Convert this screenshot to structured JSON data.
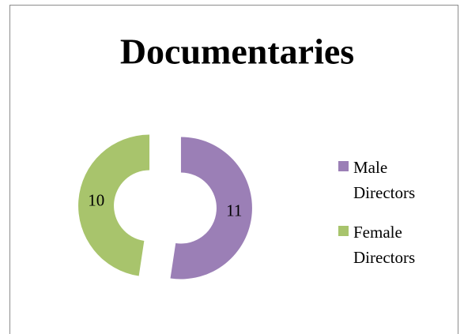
{
  "chart_data": {
    "type": "doughnut",
    "title": "Documentaries",
    "categories": [
      "Male Directors",
      "Female Directors"
    ],
    "values": [
      11,
      10
    ],
    "colors": [
      "#9b7fb6",
      "#a8c46c"
    ],
    "legend": "right"
  }
}
